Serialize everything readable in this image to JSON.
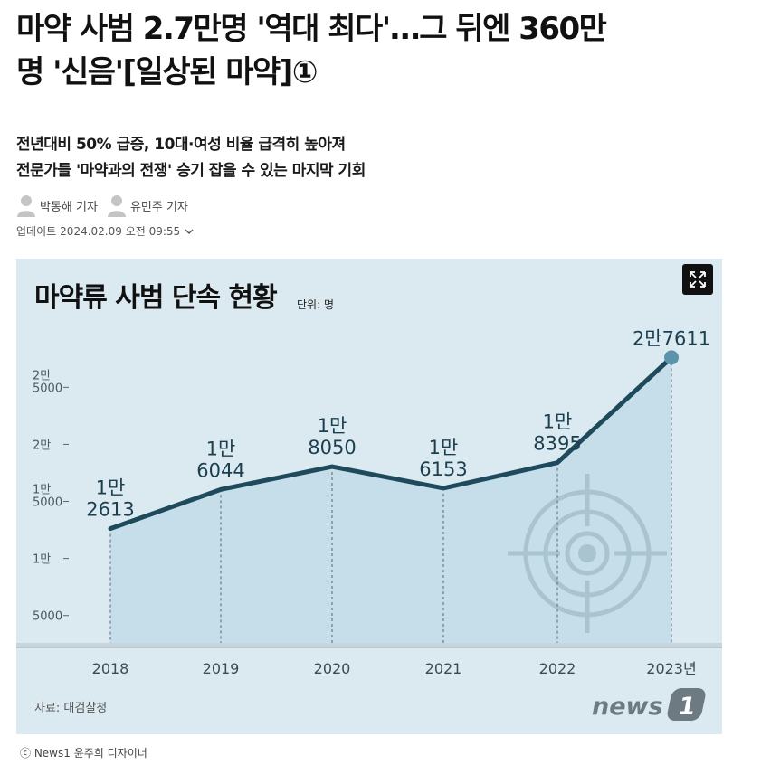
{
  "article": {
    "headline_line1": "마약 사범 2.7만명 '역대 최다'…그 뒤엔 360만",
    "headline_line2": "명 '신음'[일상된 마약]①",
    "subtitle_line1": "전년대비 50% 급증, 10대·여성 비율 급격히 높아져",
    "subtitle_line2": "전문가들 '마약과의 전쟁' 승기 잡을 수 있는 마지막 기회",
    "reporters": [
      "박동해 기자",
      "유민주 기자"
    ],
    "update_label": "업데이트",
    "update_time": "2024.02.09 오전 09:55",
    "credit": "ⓒ News1 윤주희 디자이너"
  },
  "icons": {
    "reporter_avatar": "person-silhouette-icon",
    "update_toggle": "chevron-down-icon",
    "expand": "expand-arrows-icon",
    "decoration": "crosshair-target-icon"
  },
  "colors": {
    "background": "#dbeaf1",
    "area_fill": "#bdd9e6",
    "line": "#1e4a5c",
    "last_point": "#5b94aa",
    "target": "#a9c3cf"
  },
  "chart_data": {
    "type": "line",
    "title": "마약류 사범 단속 현황",
    "unit": "단위: 명",
    "categories": [
      "2018",
      "2019",
      "2020",
      "2021",
      "2022",
      "2023년"
    ],
    "values": [
      12613,
      16044,
      18050,
      16153,
      18395,
      27611
    ],
    "value_labels": [
      [
        "1만",
        "2613"
      ],
      [
        "1만",
        "6044"
      ],
      [
        "1만",
        "8050"
      ],
      [
        "1만",
        "6153"
      ],
      [
        "1만",
        "8395"
      ],
      [
        "2만7611"
      ]
    ],
    "y_ticks": [
      {
        "value": 5000,
        "lines": [
          "5000"
        ]
      },
      {
        "value": 10000,
        "lines": [
          "1만"
        ]
      },
      {
        "value": 15000,
        "lines": [
          "1만",
          "5000"
        ]
      },
      {
        "value": 20000,
        "lines": [
          "2만"
        ]
      },
      {
        "value": 25000,
        "lines": [
          "2만",
          "5000"
        ]
      }
    ],
    "ylim": [
      2600,
      32000
    ],
    "source": "자료: 대검찰청",
    "logo_text": "news1"
  }
}
